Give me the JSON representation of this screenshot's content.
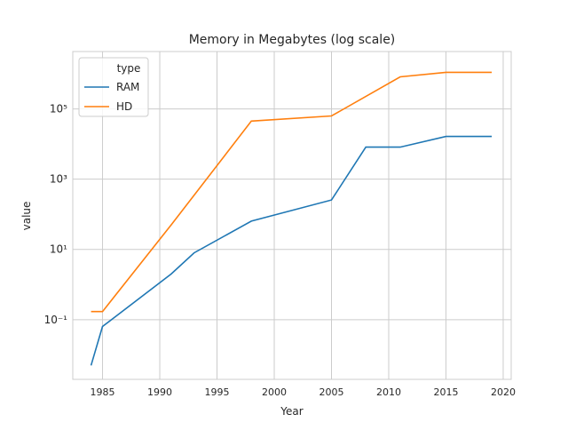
{
  "chart_data": {
    "type": "line",
    "title": "Memory in Megabytes (log scale)",
    "x_label": "Year",
    "y_label": "value",
    "legend_title": "type",
    "legend_position": "upper left",
    "log_y": true,
    "grid": true,
    "xlim": [
      1982.4,
      2020.7
    ],
    "ylim": [
      0.002,
      4300000
    ],
    "xticks": [
      1985,
      1990,
      1995,
      2000,
      2005,
      2010,
      2015,
      2020
    ],
    "yticks": [
      {
        "value": 0.1,
        "label": "10⁻¹"
      },
      {
        "value": 10,
        "label": "10¹"
      },
      {
        "value": 1000,
        "label": "10³"
      },
      {
        "value": 100000,
        "label": "10⁵"
      }
    ],
    "series": [
      {
        "name": "RAM",
        "color": "#1f77b4",
        "x": [
          1984,
          1985,
          1991,
          1993,
          1998,
          2005,
          2008,
          2011,
          2015,
          2019
        ],
        "values": [
          0.005,
          0.064,
          2,
          8,
          64,
          256,
          8192,
          8192,
          16384,
          16384
        ]
      },
      {
        "name": "HD",
        "color": "#ff7f0e",
        "x": [
          1984,
          1985,
          1991,
          1998,
          2005,
          2011,
          2015,
          2019
        ],
        "values": [
          0.17,
          0.17,
          50,
          45000,
          63000,
          820000,
          1100000,
          1100000
        ]
      }
    ]
  }
}
